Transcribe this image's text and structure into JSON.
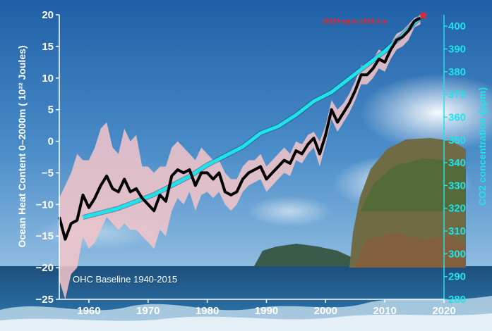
{
  "theme": {
    "ohc_line": "#000000",
    "ohc_band": "#f5c6c9",
    "co2_line": "#1fe3ea",
    "left_axis_text": "#ffffff",
    "right_axis_text": "#1fe3ea",
    "marker": "#e8252a",
    "annotation_text": "#e8252a"
  },
  "chart_data": {
    "type": "line",
    "title": "",
    "xlabel": "",
    "ylabel": "Ocean Heat Content 0–2000m ( 10²² Joules)",
    "y2label": "CO2 concentration (ppm)",
    "xlim": [
      1955,
      2020
    ],
    "ylim": [
      -25,
      20
    ],
    "y2lim": [
      280,
      405
    ],
    "x_ticks": [
      "1960",
      "1970",
      "1980",
      "1990",
      "2000",
      "2010",
      "2020"
    ],
    "y_ticks": [
      "20",
      "15",
      "10",
      "5",
      "0",
      "−5",
      "−10",
      "−15",
      "−20",
      "−25"
    ],
    "y2_ticks": [
      "400",
      "390",
      "380",
      "370",
      "360",
      "350",
      "340",
      "330",
      "320",
      "310",
      "300",
      "290",
      "280"
    ],
    "grid": false,
    "legend": "none",
    "annotations": {
      "baseline": "OHC Baseline 1940-2015",
      "marker_label": "2015August-2016July"
    },
    "series": [
      {
        "role": "ohc",
        "x": [
          1955,
          1956,
          1957,
          1958,
          1959,
          1960,
          1961,
          1962,
          1963,
          1964,
          1965,
          1966,
          1967,
          1968,
          1969,
          1970,
          1971,
          1972,
          1973,
          1974,
          1975,
          1976,
          1977,
          1978,
          1979,
          1980,
          1981,
          1982,
          1983,
          1984,
          1985,
          1986,
          1987,
          1988,
          1989,
          1990,
          1991,
          1992,
          1993,
          1994,
          1995,
          1996,
          1997,
          1998,
          1999,
          2000,
          2001,
          2002,
          2003,
          2004,
          2005,
          2006,
          2007,
          2008,
          2009,
          2010,
          2011,
          2012,
          2013,
          2014,
          2015,
          2016
        ],
        "values": [
          -12,
          -15.5,
          -13,
          -12.5,
          -8.5,
          -10.5,
          -9,
          -7,
          -5.5,
          -7.5,
          -8,
          -6,
          -8,
          -7.5,
          -9,
          -10,
          -11,
          -8.5,
          -9.5,
          -5.5,
          -4.5,
          -5,
          -4.5,
          -7,
          -5,
          -5,
          -6,
          -5,
          -8,
          -8.5,
          -8,
          -6,
          -5,
          -4.5,
          -4,
          -6,
          -5,
          -4,
          -3,
          -3.5,
          -1.5,
          -2,
          -0.5,
          0.5,
          -2,
          1,
          5,
          3,
          4.5,
          6,
          8,
          10.5,
          10.5,
          11.5,
          13,
          12.5,
          14.5,
          16,
          16.5,
          17.5,
          19,
          19.5
        ],
        "upper": [
          -9,
          -7,
          -5,
          -2,
          -3,
          -3,
          -1,
          2,
          3,
          -1,
          -2,
          2,
          0,
          1,
          -4,
          -4,
          -5,
          -4,
          -4,
          -1,
          0,
          -1,
          -2,
          -3,
          -1,
          -2,
          -3,
          -3,
          -5,
          -6,
          -6,
          -4,
          -3,
          -3,
          -2,
          -4,
          -3,
          -2,
          -1,
          -2,
          0,
          -0.5,
          1,
          1.5,
          0,
          2.5,
          6.5,
          5,
          6,
          7.5,
          9.5,
          12,
          12,
          13,
          14.5,
          14,
          15.5,
          17,
          17.5,
          18.5,
          19.5,
          20
        ],
        "lower": [
          -22,
          -25,
          -21,
          -20,
          -15,
          -17,
          -16,
          -14,
          -12,
          -13,
          -14,
          -13,
          -14,
          -14,
          -15,
          -16,
          -17,
          -14,
          -15,
          -11,
          -9,
          -10,
          -8,
          -11,
          -8.5,
          -8,
          -9,
          -8,
          -10,
          -11,
          -10,
          -8,
          -7,
          -6.5,
          -6,
          -8,
          -7,
          -6,
          -5,
          -5.5,
          -3,
          -3.5,
          -2,
          -1,
          -4,
          -0.5,
          3.5,
          1.5,
          3,
          4.5,
          6.5,
          9,
          9,
          10,
          11.5,
          11,
          13,
          14.5,
          15,
          16,
          18,
          18.5
        ]
      },
      {
        "role": "co2",
        "axis": "right",
        "x": [
          1959,
          1962,
          1965,
          1968,
          1971,
          1974,
          1977,
          1980,
          1983,
          1986,
          1989,
          1992,
          1995,
          1998,
          2001,
          2004,
          2007,
          2010,
          2013,
          2016
        ],
        "values": [
          316,
          318,
          320,
          323,
          326,
          330,
          334,
          339,
          343,
          347,
          353,
          356,
          361,
          367,
          371,
          377,
          383,
          389,
          396,
          404
        ]
      }
    ],
    "marker": {
      "x": 2016.5,
      "y": 19.9
    }
  }
}
